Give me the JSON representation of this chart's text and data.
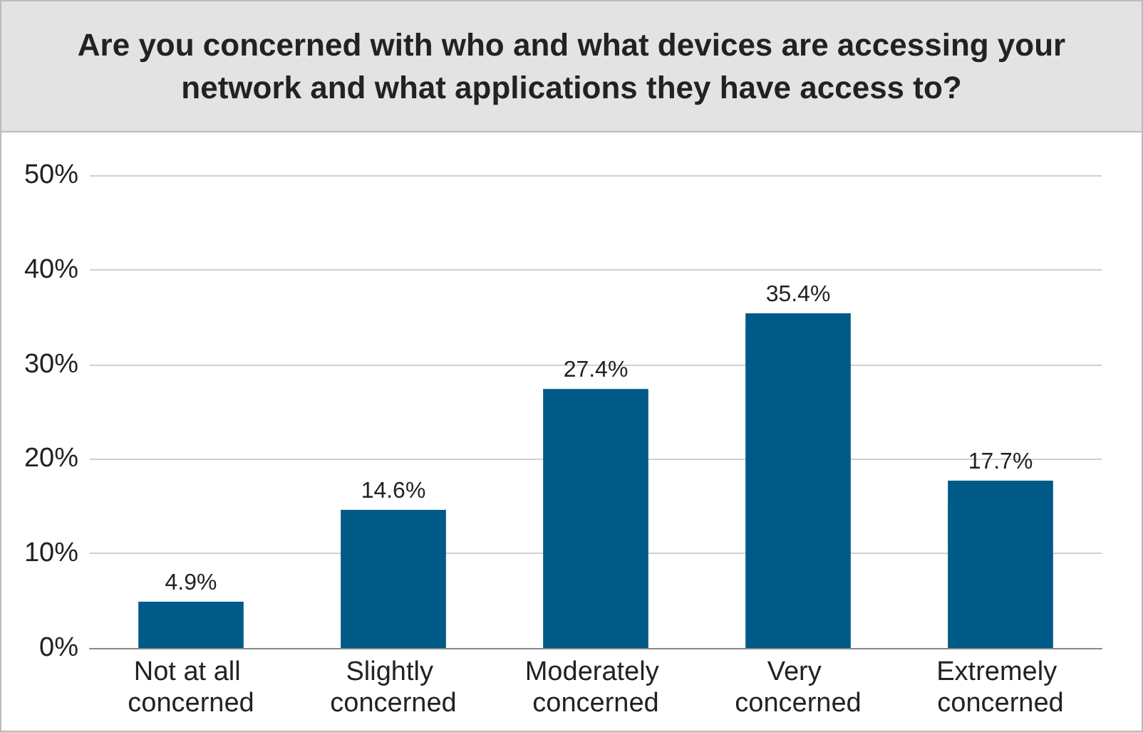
{
  "chart_data": {
    "type": "bar",
    "title": "Are you concerned with who and what devices are accessing your network and what applications they have access to?",
    "categories": [
      "Not at all concerned",
      "Slightly concerned",
      "Moderately concerned",
      "Very concerned",
      "Extremely concerned"
    ],
    "values": [
      4.9,
      14.6,
      27.4,
      35.4,
      17.7
    ],
    "value_labels": [
      "4.9%",
      "14.6%",
      "27.4%",
      "35.4%",
      "17.7%"
    ],
    "color": "#005a87",
    "ylim": [
      0,
      50
    ],
    "yticks": [
      {
        "value": 0,
        "label": "0%"
      },
      {
        "value": 10,
        "label": "10%"
      },
      {
        "value": 20,
        "label": "20%"
      },
      {
        "value": 30,
        "label": "30%"
      },
      {
        "value": 40,
        "label": "40%"
      },
      {
        "value": 50,
        "label": "50%"
      }
    ],
    "grid": "y"
  }
}
